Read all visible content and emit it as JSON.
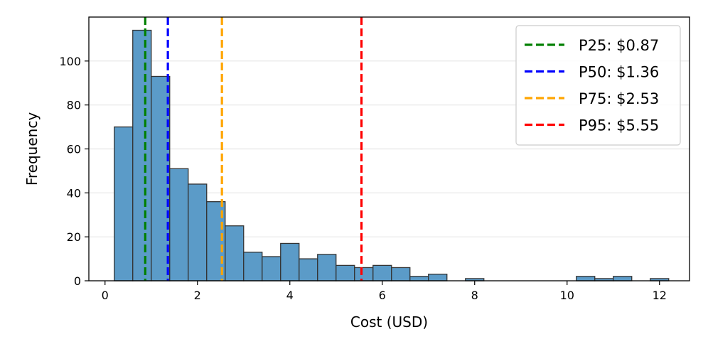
{
  "chart_data": {
    "type": "bar",
    "xlabel": "Cost (USD)",
    "ylabel": "Frequency",
    "xlim": [
      -0.35,
      12.65
    ],
    "ylim": [
      0,
      120
    ],
    "x_ticks": [
      0,
      2,
      4,
      6,
      8,
      10,
      12
    ],
    "y_ticks": [
      0,
      20,
      40,
      60,
      80,
      100
    ],
    "grid": "y",
    "legend_placement": "top-right",
    "bar_color": "#5b9bc8",
    "bar_edge_color": "#333333",
    "bin_edges": [
      0.2,
      0.6,
      1.0,
      1.4,
      1.8,
      2.2,
      2.6,
      3.0,
      3.4,
      3.8,
      4.2,
      4.6,
      5.0,
      5.4,
      5.8,
      6.2,
      6.6,
      7.0,
      7.4,
      7.8,
      8.2,
      8.6,
      9.0,
      9.4,
      9.8,
      10.2,
      10.6,
      11.0,
      11.4,
      11.8,
      12.2
    ],
    "counts": [
      70,
      114,
      93,
      51,
      44,
      36,
      25,
      13,
      11,
      17,
      10,
      12,
      7,
      6,
      7,
      6,
      2,
      3,
      0,
      1,
      0,
      0,
      0,
      0,
      0,
      2,
      1,
      2,
      0,
      1
    ],
    "series": [
      {
        "name": "P25: $0.87",
        "x": 0.87,
        "color": "#008000"
      },
      {
        "name": "P50: $1.36",
        "x": 1.36,
        "color": "#0000ff"
      },
      {
        "name": "P75: $2.53",
        "x": 2.53,
        "color": "#ffa500"
      },
      {
        "name": "P95: $5.55",
        "x": 5.55,
        "color": "#ff0000"
      }
    ]
  }
}
